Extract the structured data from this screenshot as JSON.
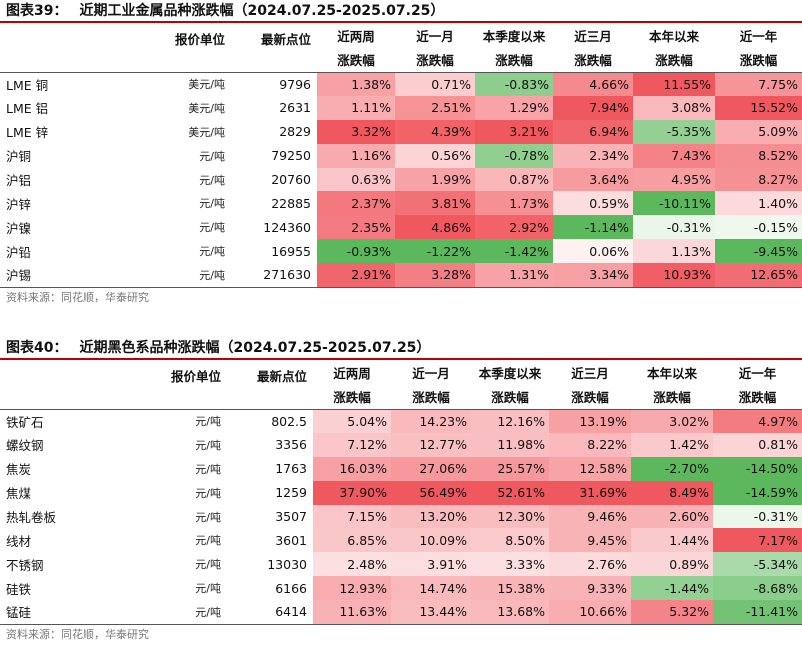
{
  "colors": {
    "pos_max": "#f0585f",
    "neg_max": "#5cb85c",
    "title_rule": "#c00000",
    "source_text": "#777777"
  },
  "column_headers": {
    "unit": "报价单位",
    "price": "最新点位",
    "periods": [
      {
        "line1": "近两周",
        "line2": "涨跌幅"
      },
      {
        "line1": "近一月",
        "line2": "涨跌幅"
      },
      {
        "line1": "本季度以来",
        "line2": "涨跌幅"
      },
      {
        "line1": "近三月",
        "line2": "涨跌幅"
      },
      {
        "line1": "本年以来",
        "line2": "涨跌幅"
      },
      {
        "line1": "近一年",
        "line2": "涨跌幅"
      }
    ]
  },
  "tables": [
    {
      "label": "图表39：",
      "title": "近期工业金属品种涨跌幅（2024.07.25-2025.07.25）",
      "source": "资料来源：同花顺，华泰研究",
      "rows": [
        {
          "name": "LME 铜",
          "unit": "美元/吨",
          "price": "9796",
          "values": [
            "1.38%",
            "0.71%",
            "-0.83%",
            "4.66%",
            "11.55%",
            "7.75%"
          ]
        },
        {
          "name": "LME 铝",
          "unit": "美元/吨",
          "price": "2631",
          "values": [
            "1.11%",
            "2.51%",
            "1.29%",
            "7.94%",
            "3.08%",
            "15.52%"
          ]
        },
        {
          "name": "LME 锌",
          "unit": "美元/吨",
          "price": "2829",
          "values": [
            "3.32%",
            "4.39%",
            "3.21%",
            "6.94%",
            "-5.35%",
            "5.09%"
          ]
        },
        {
          "name": "沪铜",
          "unit": "元/吨",
          "price": "79250",
          "values": [
            "1.16%",
            "0.56%",
            "-0.78%",
            "2.34%",
            "7.43%",
            "8.52%"
          ]
        },
        {
          "name": "沪铝",
          "unit": "元/吨",
          "price": "20760",
          "values": [
            "0.63%",
            "1.99%",
            "0.87%",
            "3.64%",
            "4.95%",
            "8.27%"
          ]
        },
        {
          "name": "沪锌",
          "unit": "元/吨",
          "price": "22885",
          "values": [
            "2.37%",
            "3.81%",
            "1.73%",
            "0.59%",
            "-10.11%",
            "1.40%"
          ]
        },
        {
          "name": "沪镍",
          "unit": "元/吨",
          "price": "124360",
          "values": [
            "2.35%",
            "4.86%",
            "2.92%",
            "-1.14%",
            "-0.31%",
            "-0.15%"
          ]
        },
        {
          "name": "沪铅",
          "unit": "元/吨",
          "price": "16955",
          "values": [
            "-0.93%",
            "-1.22%",
            "-1.42%",
            "0.06%",
            "1.13%",
            "-9.45%"
          ]
        },
        {
          "name": "沪锡",
          "unit": "元/吨",
          "price": "271630",
          "values": [
            "2.91%",
            "3.28%",
            "1.31%",
            "3.34%",
            "10.93%",
            "12.65%"
          ]
        }
      ]
    },
    {
      "label": "图表40：",
      "title": "近期黑色系品种涨跌幅（2024.07.25-2025.07.25）",
      "source": "资料来源：同花顺，华泰研究",
      "rows": [
        {
          "name": "铁矿石",
          "unit": "元/吨",
          "price": "802.5",
          "values": [
            "5.04%",
            "14.23%",
            "12.16%",
            "13.19%",
            "3.02%",
            "4.97%"
          ]
        },
        {
          "name": "螺纹钢",
          "unit": "元/吨",
          "price": "3356",
          "values": [
            "7.12%",
            "12.77%",
            "11.98%",
            "8.22%",
            "1.42%",
            "0.81%"
          ]
        },
        {
          "name": "焦炭",
          "unit": "元/吨",
          "price": "1763",
          "values": [
            "16.03%",
            "27.06%",
            "25.57%",
            "12.58%",
            "-2.70%",
            "-14.50%"
          ]
        },
        {
          "name": "焦煤",
          "unit": "元/吨",
          "price": "1259",
          "values": [
            "37.90%",
            "56.49%",
            "52.61%",
            "31.69%",
            "8.49%",
            "-14.59%"
          ]
        },
        {
          "name": "热轧卷板",
          "unit": "元/吨",
          "price": "3507",
          "values": [
            "7.15%",
            "13.20%",
            "12.30%",
            "9.46%",
            "2.60%",
            "-0.31%"
          ]
        },
        {
          "name": "线材",
          "unit": "元/吨",
          "price": "3601",
          "values": [
            "6.85%",
            "10.09%",
            "8.50%",
            "9.45%",
            "1.44%",
            "7.17%"
          ]
        },
        {
          "name": "不锈钢",
          "unit": "元/吨",
          "price": "13030",
          "values": [
            "2.48%",
            "3.91%",
            "3.33%",
            "2.76%",
            "0.89%",
            "-5.34%"
          ]
        },
        {
          "name": "硅铁",
          "unit": "元/吨",
          "price": "6166",
          "values": [
            "12.93%",
            "14.74%",
            "15.38%",
            "9.33%",
            "-1.44%",
            "-8.68%"
          ]
        },
        {
          "name": "锰硅",
          "unit": "元/吨",
          "price": "6414",
          "values": [
            "11.63%",
            "13.44%",
            "13.68%",
            "10.66%",
            "5.32%",
            "-11.41%"
          ]
        }
      ]
    }
  ]
}
